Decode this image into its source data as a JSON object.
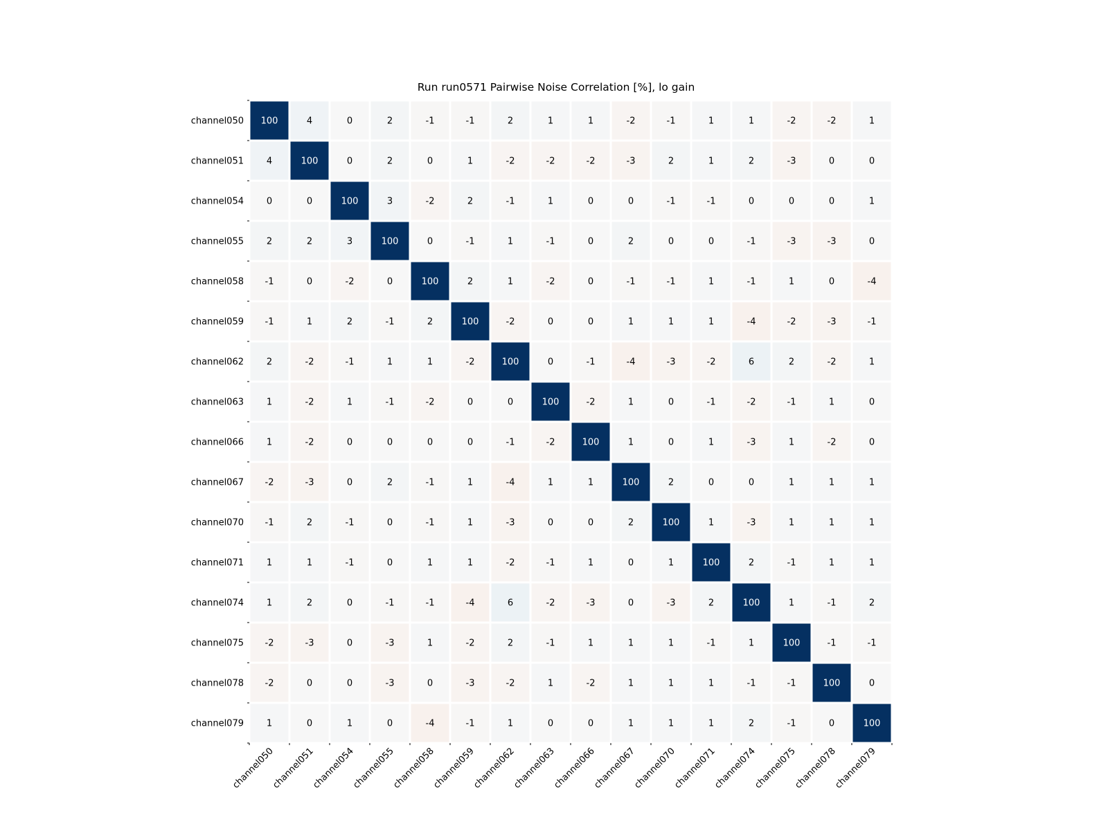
{
  "chart_data": {
    "type": "heatmap",
    "title": "Run run0571 Pairwise Noise Correlation [%], lo gain",
    "xlabel": "",
    "ylabel": "",
    "colorscale": {
      "negative": "#67001f",
      "zero": "#f7f7f7",
      "positive": "#053061",
      "vmin": -100,
      "vmax": 100
    },
    "colorbar": false,
    "x_categories": [
      "channel050",
      "channel051",
      "channel054",
      "channel055",
      "channel058",
      "channel059",
      "channel062",
      "channel063",
      "channel066",
      "channel067",
      "channel070",
      "channel071",
      "channel074",
      "channel075",
      "channel078",
      "channel079"
    ],
    "y_categories": [
      "channel050",
      "channel051",
      "channel054",
      "channel055",
      "channel058",
      "channel059",
      "channel062",
      "channel063",
      "channel066",
      "channel067",
      "channel070",
      "channel071",
      "channel074",
      "channel075",
      "channel078",
      "channel079"
    ],
    "values": [
      [
        100,
        4,
        0,
        2,
        -1,
        -1,
        2,
        1,
        1,
        -2,
        -1,
        1,
        1,
        -2,
        -2,
        1
      ],
      [
        4,
        100,
        0,
        2,
        0,
        1,
        -2,
        -2,
        -2,
        -3,
        2,
        1,
        2,
        -3,
        0,
        0
      ],
      [
        0,
        0,
        100,
        3,
        -2,
        2,
        -1,
        1,
        0,
        0,
        -1,
        -1,
        0,
        0,
        0,
        1
      ],
      [
        2,
        2,
        3,
        100,
        0,
        -1,
        1,
        -1,
        0,
        2,
        0,
        0,
        -1,
        -3,
        -3,
        0
      ],
      [
        -1,
        0,
        -2,
        0,
        100,
        2,
        1,
        -2,
        0,
        -1,
        -1,
        1,
        -1,
        1,
        0,
        -4
      ],
      [
        -1,
        1,
        2,
        -1,
        2,
        100,
        -2,
        0,
        0,
        1,
        1,
        1,
        -4,
        -2,
        -3,
        -1
      ],
      [
        2,
        -2,
        -1,
        1,
        1,
        -2,
        100,
        0,
        -1,
        -4,
        -3,
        -2,
        6,
        2,
        -2,
        1
      ],
      [
        1,
        -2,
        1,
        -1,
        -2,
        0,
        0,
        100,
        -2,
        1,
        0,
        -1,
        -2,
        -1,
        1,
        0
      ],
      [
        1,
        -2,
        0,
        0,
        0,
        0,
        -1,
        -2,
        100,
        1,
        0,
        1,
        -3,
        1,
        -2,
        0
      ],
      [
        -2,
        -3,
        0,
        2,
        -1,
        1,
        -4,
        1,
        1,
        100,
        2,
        0,
        0,
        1,
        1,
        1
      ],
      [
        -1,
        2,
        -1,
        0,
        -1,
        1,
        -3,
        0,
        0,
        2,
        100,
        1,
        -3,
        1,
        1,
        1
      ],
      [
        1,
        1,
        -1,
        0,
        1,
        1,
        -2,
        -1,
        1,
        0,
        1,
        100,
        2,
        -1,
        1,
        1
      ],
      [
        1,
        2,
        0,
        -1,
        -1,
        -4,
        6,
        -2,
        -3,
        0,
        -3,
        2,
        100,
        1,
        -1,
        2
      ],
      [
        -2,
        -3,
        0,
        -3,
        1,
        -2,
        2,
        -1,
        1,
        1,
        1,
        -1,
        1,
        100,
        -1,
        -1
      ],
      [
        -2,
        0,
        0,
        -3,
        0,
        -3,
        -2,
        1,
        -2,
        1,
        1,
        1,
        -1,
        -1,
        100,
        0
      ],
      [
        1,
        0,
        1,
        0,
        -4,
        -1,
        1,
        0,
        0,
        1,
        1,
        1,
        2,
        -1,
        0,
        100
      ]
    ]
  }
}
